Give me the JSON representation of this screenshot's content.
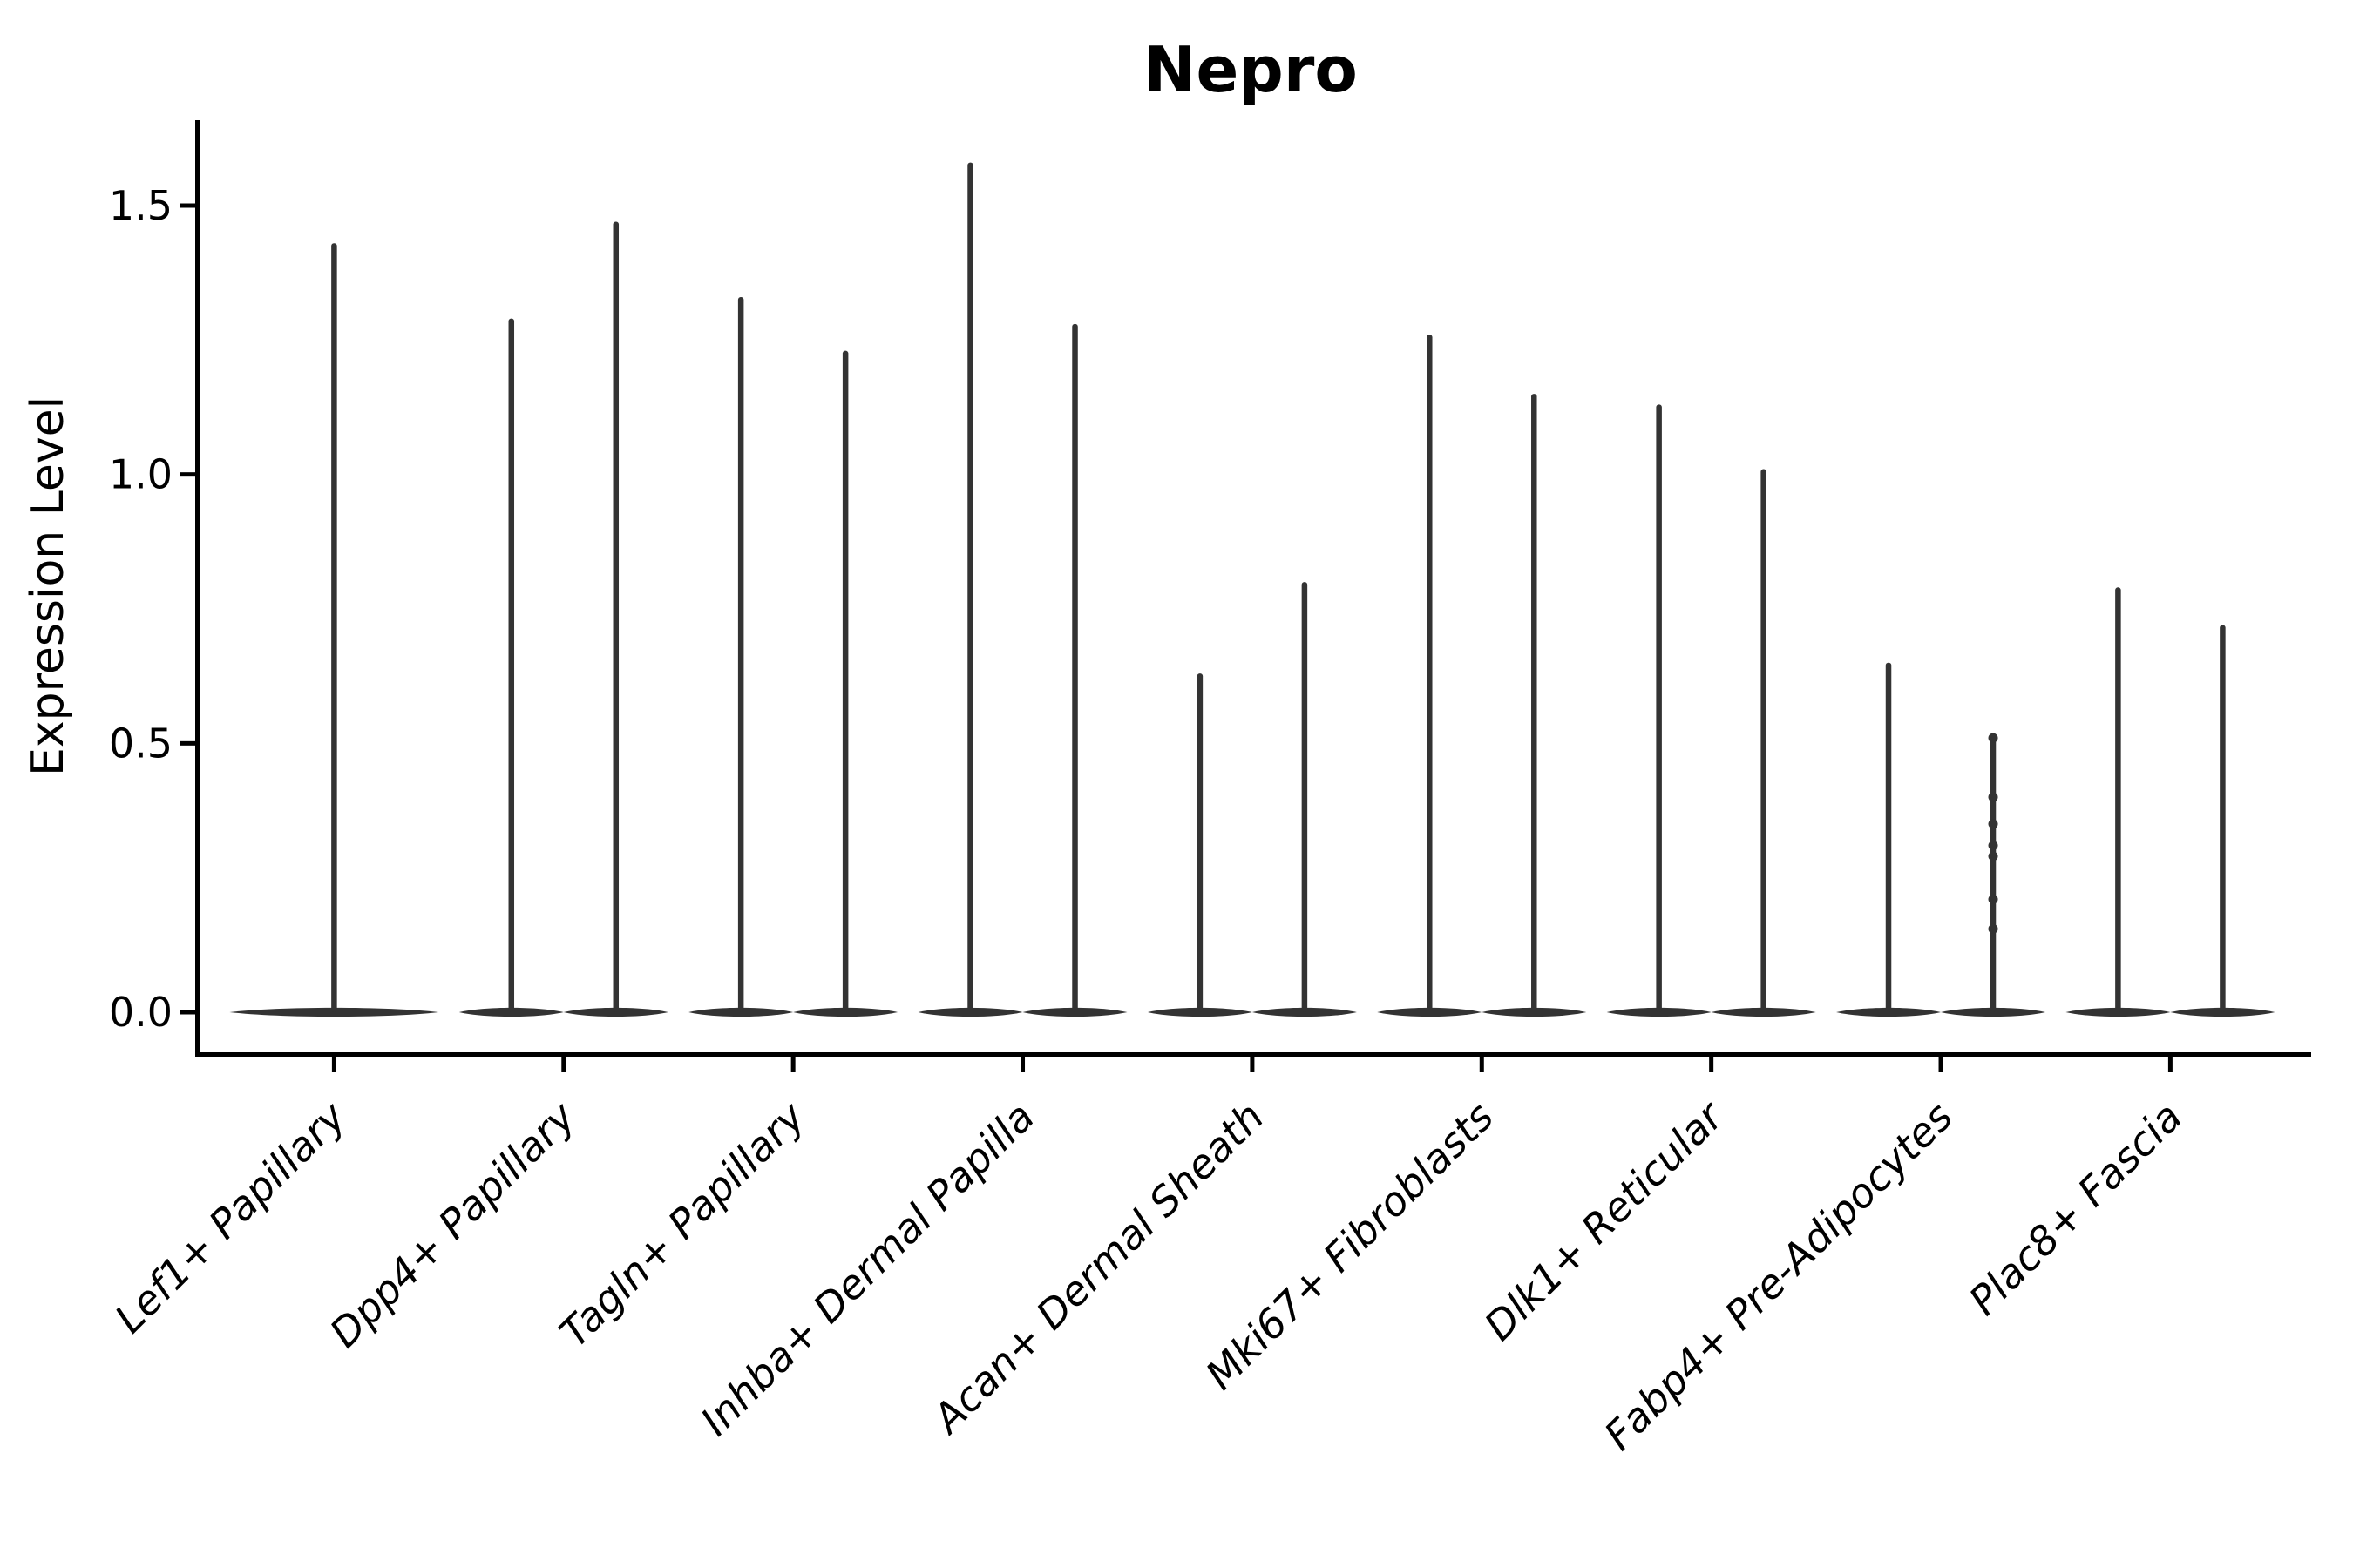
{
  "chart_data": {
    "type": "violin",
    "title": "Nepro",
    "xlabel": "",
    "ylabel": "Expression Level",
    "ylim": [
      -0.08,
      1.65
    ],
    "yticks": [
      "0.0",
      "0.5",
      "1.0",
      "1.5"
    ],
    "ytick_values": [
      0.0,
      0.5,
      1.0,
      1.5
    ],
    "x_tick_rotation": 45,
    "grid": "off",
    "legend": "none",
    "violin_color": "#333333",
    "axis_color": "#000000",
    "categories": [
      "Lef1+ Papillary",
      "Dpp4+ Papillary",
      "Tagln+ Papillary",
      "Inhba+ Dermal Papilla",
      "Acan+ Dermal Sheath",
      "Mki67+ Fibroblasts",
      "Dlk1+ Reticular",
      "Fabp4+ Pre-Adipocytes",
      "Plac8+ Fascia"
    ],
    "groups": [
      {
        "name": "Lef1+ Papillary",
        "violins": [
          {
            "offset": 0,
            "max": 1.43,
            "jitter": []
          }
        ]
      },
      {
        "name": "Dpp4+ Papillary",
        "violins": [
          {
            "offset": -1,
            "max": 1.29,
            "jitter": []
          },
          {
            "offset": 1,
            "max": 1.47,
            "jitter": []
          }
        ]
      },
      {
        "name": "Tagln+ Papillary",
        "violins": [
          {
            "offset": -1,
            "max": 1.33,
            "jitter": []
          },
          {
            "offset": 1,
            "max": 1.23,
            "jitter": []
          }
        ]
      },
      {
        "name": "Inhba+ Dermal Papilla",
        "violins": [
          {
            "offset": -1,
            "max": 1.58,
            "jitter": []
          },
          {
            "offset": 1,
            "max": 1.28,
            "jitter": []
          }
        ]
      },
      {
        "name": "Acan+ Dermal Sheath",
        "violins": [
          {
            "offset": -1,
            "max": 0.63,
            "jitter": []
          },
          {
            "offset": 1,
            "max": 0.8,
            "jitter": []
          }
        ]
      },
      {
        "name": "Mki67+ Fibroblasts",
        "violins": [
          {
            "offset": -1,
            "max": 1.26,
            "jitter": []
          },
          {
            "offset": 1,
            "max": 1.15,
            "jitter": []
          }
        ]
      },
      {
        "name": "Dlk1+ Reticular",
        "violins": [
          {
            "offset": -1,
            "max": 1.13,
            "jitter": []
          },
          {
            "offset": 1,
            "max": 1.01,
            "jitter": []
          }
        ]
      },
      {
        "name": "Fabp4+ Pre-Adipocytes",
        "violins": [
          {
            "offset": -1,
            "max": 0.65,
            "jitter": []
          },
          {
            "offset": 1,
            "max": 0.51,
            "jitter": [
              0.51,
              0.4,
              0.35,
              0.31,
              0.29,
              0.21,
              0.155
            ]
          }
        ]
      },
      {
        "name": "Plac8+ Fascia",
        "violins": [
          {
            "offset": -1,
            "max": 0.79,
            "jitter": []
          },
          {
            "offset": 1,
            "max": 0.72,
            "jitter": []
          }
        ]
      }
    ],
    "baseline_value": 0.0
  }
}
